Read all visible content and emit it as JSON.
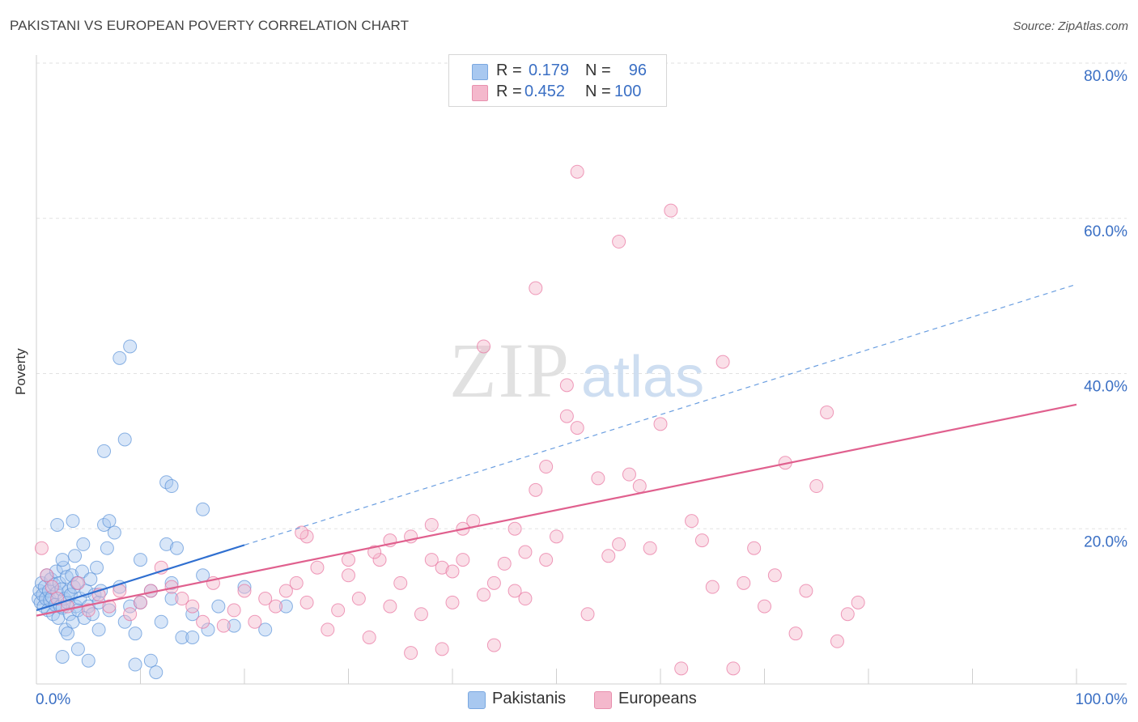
{
  "title": "PAKISTANI VS EUROPEAN POVERTY CORRELATION CHART",
  "source": "Source: ZipAtlas.com",
  "watermark": {
    "zip": "ZIP",
    "atlas": "atlas"
  },
  "stats": [
    {
      "r_label": "R =",
      "r_value": "0.179",
      "n_label": "N =",
      "n_value": "96",
      "color": "#a8c8f0"
    },
    {
      "r_label": "R =",
      "r_value": "0.452",
      "n_label": "N =",
      "n_value": "100",
      "color": "#f4b8cc"
    }
  ],
  "legend": [
    {
      "label": "Pakistanis",
      "color": "#a8c8f0"
    },
    {
      "label": "Europeans",
      "color": "#f4b8cc"
    }
  ],
  "chart_data": {
    "type": "scatter",
    "title": "PAKISTANI VS EUROPEAN POVERTY CORRELATION CHART",
    "xlabel": "",
    "ylabel": "Poverty",
    "xlim": [
      0,
      100
    ],
    "ylim": [
      0,
      80
    ],
    "x_tick_labels": [
      "0.0%",
      "100.0%"
    ],
    "y_ticks": [
      20,
      40,
      60,
      80
    ],
    "y_tick_labels": [
      "20.0%",
      "40.0%",
      "60.0%",
      "80.0%"
    ],
    "grid": true,
    "legend_position": "bottom-center",
    "series": [
      {
        "name": "Pakistanis",
        "color": "#5b93d8",
        "fill": "#a8c8f0",
        "trend": {
          "x0": 0,
          "y0": 9.5,
          "x1": 100,
          "y1": 51.5,
          "solid_until_x": 20
        },
        "points": [
          [
            0.2,
            11
          ],
          [
            0.3,
            12
          ],
          [
            0.4,
            10.5
          ],
          [
            0.5,
            13
          ],
          [
            0.6,
            11.5
          ],
          [
            0.7,
            10
          ],
          [
            0.8,
            12.5
          ],
          [
            0.9,
            11
          ],
          [
            1.0,
            14
          ],
          [
            1.1,
            9.5
          ],
          [
            1.2,
            12
          ],
          [
            1.3,
            10.8
          ],
          [
            1.4,
            13.5
          ],
          [
            1.5,
            11.2
          ],
          [
            1.6,
            9
          ],
          [
            1.7,
            12.8
          ],
          [
            1.8,
            10.2
          ],
          [
            1.9,
            14.5
          ],
          [
            2.0,
            11.8
          ],
          [
            2.1,
            8.5
          ],
          [
            2.2,
            13
          ],
          [
            2.3,
            10
          ],
          [
            2.4,
            12.2
          ],
          [
            2.5,
            9.8
          ],
          [
            2.6,
            15
          ],
          [
            2.7,
            11
          ],
          [
            2.8,
            7
          ],
          [
            2.9,
            13.8
          ],
          [
            3.0,
            10.5
          ],
          [
            3.1,
            12
          ],
          [
            3.2,
            9
          ],
          [
            3.3,
            11.5
          ],
          [
            3.4,
            14
          ],
          [
            3.5,
            8
          ],
          [
            3.6,
            12.5
          ],
          [
            3.7,
            16.5
          ],
          [
            3.8,
            10
          ],
          [
            3.9,
            13
          ],
          [
            4.0,
            9.5
          ],
          [
            4.2,
            11
          ],
          [
            4.4,
            14.5
          ],
          [
            4.6,
            8.5
          ],
          [
            4.8,
            12
          ],
          [
            5.0,
            10
          ],
          [
            5.2,
            13.5
          ],
          [
            5.4,
            9
          ],
          [
            5.6,
            11.5
          ],
          [
            5.8,
            15
          ],
          [
            6.0,
            10.5
          ],
          [
            6.2,
            12
          ],
          [
            2.0,
            20.5
          ],
          [
            2.5,
            16
          ],
          [
            3.5,
            21
          ],
          [
            4.5,
            18
          ],
          [
            6.5,
            20.5
          ],
          [
            7,
            21
          ],
          [
            7.5,
            19.5
          ],
          [
            6.8,
            17.5
          ],
          [
            4.0,
            4.5
          ],
          [
            3.0,
            6.5
          ],
          [
            2.5,
            3.5
          ],
          [
            5.0,
            3
          ],
          [
            6.0,
            7
          ],
          [
            7.0,
            9.5
          ],
          [
            8.0,
            12.5
          ],
          [
            8.5,
            8
          ],
          [
            9.0,
            10
          ],
          [
            9.5,
            6.5
          ],
          [
            10.0,
            10.5
          ],
          [
            11.0,
            12
          ],
          [
            12.0,
            8
          ],
          [
            13.0,
            11
          ],
          [
            14.0,
            6
          ],
          [
            15.0,
            9
          ],
          [
            16.0,
            14
          ],
          [
            17.5,
            10
          ],
          [
            19.0,
            7.5
          ],
          [
            20.0,
            12.5
          ],
          [
            22.0,
            7
          ],
          [
            24.0,
            10
          ],
          [
            6.5,
            30
          ],
          [
            8.0,
            42
          ],
          [
            9.0,
            43.5
          ],
          [
            8.5,
            31.5
          ],
          [
            12.5,
            26
          ],
          [
            13.0,
            25.5
          ],
          [
            12.5,
            18
          ],
          [
            13.5,
            17.5
          ],
          [
            16.0,
            22.5
          ],
          [
            10.0,
            16
          ],
          [
            11.0,
            3
          ],
          [
            11.5,
            1.5
          ],
          [
            15.0,
            6
          ],
          [
            16.5,
            7
          ],
          [
            13.0,
            13
          ],
          [
            9.5,
            2.5
          ]
        ]
      },
      {
        "name": "Europeans",
        "color": "#e8729e",
        "fill": "#f4b8cc",
        "trend": {
          "x0": 0,
          "y0": 8.8,
          "x1": 100,
          "y1": 36
        },
        "points": [
          [
            0.5,
            17.5
          ],
          [
            1,
            14
          ],
          [
            1.5,
            12.5
          ],
          [
            2,
            11
          ],
          [
            3,
            10
          ],
          [
            4,
            13
          ],
          [
            5,
            9.5
          ],
          [
            6,
            11.5
          ],
          [
            7,
            10
          ],
          [
            8,
            12
          ],
          [
            9,
            9
          ],
          [
            10,
            10.5
          ],
          [
            11,
            12
          ],
          [
            12,
            15
          ],
          [
            13,
            12.5
          ],
          [
            14,
            11
          ],
          [
            15,
            10
          ],
          [
            16,
            8
          ],
          [
            17,
            13
          ],
          [
            18,
            7.5
          ],
          [
            19,
            9.5
          ],
          [
            20,
            12
          ],
          [
            21,
            8
          ],
          [
            22,
            11
          ],
          [
            23,
            10
          ],
          [
            24,
            12
          ],
          [
            25,
            13
          ],
          [
            26,
            10.5
          ],
          [
            27,
            15
          ],
          [
            28,
            7
          ],
          [
            29,
            9.5
          ],
          [
            30,
            14
          ],
          [
            31,
            11
          ],
          [
            32,
            6
          ],
          [
            33,
            16
          ],
          [
            34,
            10
          ],
          [
            35,
            13
          ],
          [
            36,
            4
          ],
          [
            37,
            9
          ],
          [
            38,
            16
          ],
          [
            39,
            4.5
          ],
          [
            40,
            10.5
          ],
          [
            41,
            20
          ],
          [
            42,
            21
          ],
          [
            43,
            11.5
          ],
          [
            44,
            5
          ],
          [
            45,
            15.5
          ],
          [
            46,
            20
          ],
          [
            47,
            17
          ],
          [
            48,
            25
          ],
          [
            49,
            28
          ],
          [
            50,
            19
          ],
          [
            51,
            34.5
          ],
          [
            52,
            33
          ],
          [
            53,
            9
          ],
          [
            54,
            26.5
          ],
          [
            55,
            16.5
          ],
          [
            56,
            18
          ],
          [
            57,
            27
          ],
          [
            58,
            25.5
          ],
          [
            59,
            17.5
          ],
          [
            60,
            33.5
          ],
          [
            62,
            2
          ],
          [
            63,
            21
          ],
          [
            64,
            18.5
          ],
          [
            65,
            12.5
          ],
          [
            66,
            41.5
          ],
          [
            67,
            2
          ],
          [
            68,
            13
          ],
          [
            69,
            17.5
          ],
          [
            70,
            10
          ],
          [
            71,
            14
          ],
          [
            72,
            28.5
          ],
          [
            73,
            6.5
          ],
          [
            74,
            12
          ],
          [
            75,
            25.5
          ],
          [
            76,
            35
          ],
          [
            77,
            5.5
          ],
          [
            78,
            9
          ],
          [
            79,
            10.5
          ],
          [
            43,
            43.5
          ],
          [
            48,
            51
          ],
          [
            51,
            38.5
          ],
          [
            52,
            66
          ],
          [
            56,
            57
          ],
          [
            61,
            61
          ],
          [
            26,
            19
          ],
          [
            25.5,
            19.5
          ],
          [
            30,
            16
          ],
          [
            32.5,
            17
          ],
          [
            34,
            18.5
          ],
          [
            36,
            19
          ],
          [
            38,
            20.5
          ],
          [
            39,
            15
          ],
          [
            40,
            14.5
          ],
          [
            41,
            16
          ],
          [
            44,
            13
          ],
          [
            46,
            12
          ],
          [
            47,
            11
          ],
          [
            49,
            16
          ]
        ]
      }
    ]
  }
}
